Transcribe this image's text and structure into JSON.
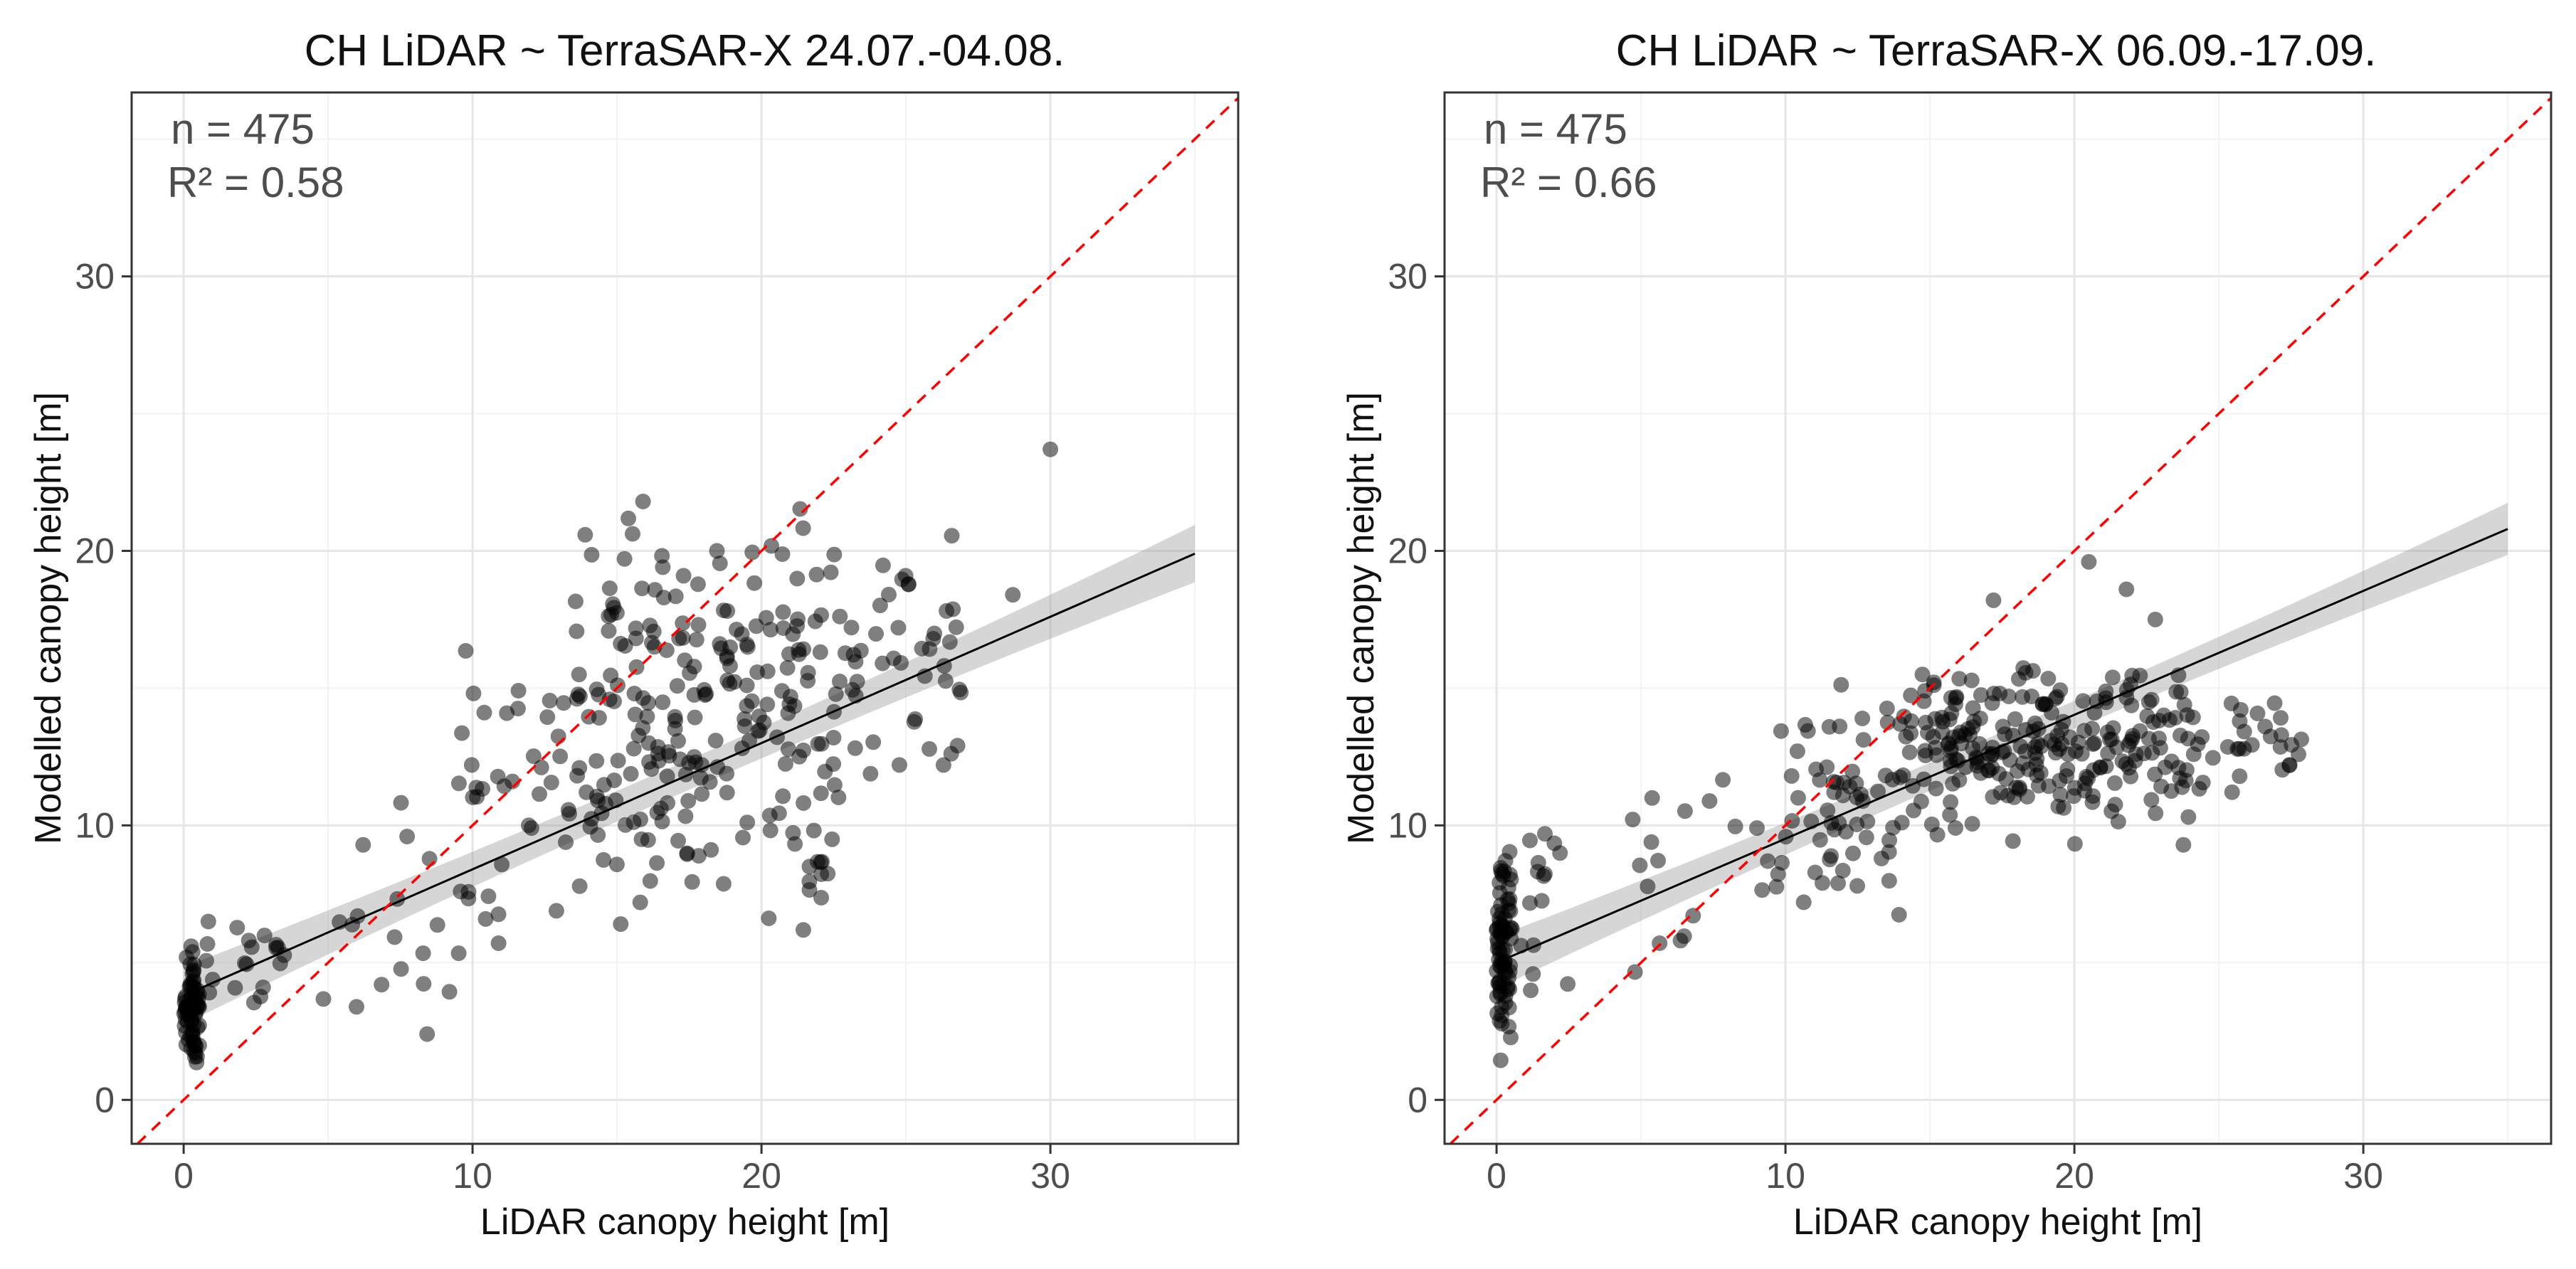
{
  "chart_data": [
    {
      "type": "scatter",
      "title": "CH LiDAR ~ TerraSAR-X 24.07.-04.08.",
      "xlabel": "LiDAR canopy height [m]",
      "ylabel": "Modelled canopy height [m]",
      "xlim": [
        -1.8,
        36.5
      ],
      "ylim": [
        -1.6,
        36.7
      ],
      "xticks": [
        0,
        10,
        20,
        30
      ],
      "yticks": [
        0,
        10,
        20,
        30
      ],
      "tick_labels_x": [
        "0",
        "10",
        "20",
        "30"
      ],
      "tick_labels_y": [
        "0",
        "10",
        "20",
        "30"
      ],
      "annotation_n": "n = 475",
      "annotation_r2": "R² = 0.58",
      "n": 475,
      "r2": 0.58,
      "fit": {
        "x0": 0,
        "y0": 3.8,
        "x1": 35,
        "y1": 19.9,
        "se": 0.55
      },
      "identity_line": true,
      "series": [
        {
          "name": "observations",
          "seed": 11,
          "groups": [
            {
              "count": 75,
              "x": [
                0,
                0.55
              ],
              "y": [
                0.9,
                5.8
              ]
            },
            {
              "count": 20,
              "x": [
                0.6,
                3.5
              ],
              "y": [
                3.3,
                7.6
              ]
            },
            {
              "count": 18,
              "x": [
                4.5,
                9.8
              ],
              "y": [
                1.2,
                12.2
              ]
            },
            {
              "count": 40,
              "x": [
                9.5,
                13.5
              ],
              "y": [
                4.8,
                19.4
              ]
            },
            {
              "count": 230,
              "x": [
                13.5,
                22.5
              ],
              "y": [
                6,
                22
              ]
            },
            {
              "count": 50,
              "x": [
                22.5,
                27
              ],
              "y": [
                10,
                21.2
              ]
            }
          ],
          "points": [
            [
              30,
              23.7
            ],
            [
              28.7,
              18.4
            ],
            [
              15.9,
              21.8
            ],
            [
              26.3,
              12.2
            ]
          ]
        }
      ]
    },
    {
      "type": "scatter",
      "title": "CH LiDAR ~ TerraSAR-X 06.09.-17.09.",
      "xlabel": "LiDAR canopy height [m]",
      "ylabel": "Modelled canopy height [m]",
      "xlim": [
        -1.8,
        36.5
      ],
      "ylim": [
        -1.6,
        36.7
      ],
      "xticks": [
        0,
        10,
        20,
        30
      ],
      "yticks": [
        0,
        10,
        20,
        30
      ],
      "tick_labels_x": [
        "0",
        "10",
        "20",
        "30"
      ],
      "tick_labels_y": [
        "0",
        "10",
        "20",
        "30"
      ],
      "annotation_n": "n = 475",
      "annotation_r2": "R² = 0.66",
      "n": 475,
      "r2": 0.66,
      "fit": {
        "x0": 0,
        "y0": 5.0,
        "x1": 35,
        "y1": 20.8,
        "se": 0.5
      },
      "identity_line": true,
      "series": [
        {
          "name": "observations",
          "seed": 29,
          "groups": [
            {
              "count": 80,
              "x": [
                0,
                0.5
              ],
              "y": [
                0.7,
                10.1
              ]
            },
            {
              "count": 16,
              "x": [
                0.5,
                3
              ],
              "y": [
                2.8,
                11.4
              ]
            },
            {
              "count": 20,
              "x": [
                4.5,
                9.8
              ],
              "y": [
                2.3,
                15.3
              ]
            },
            {
              "count": 60,
              "x": [
                9.8,
                14
              ],
              "y": [
                6.4,
                15.4
              ]
            },
            {
              "count": 240,
              "x": [
                14,
                24
              ],
              "y": [
                9.2,
                16.3
              ]
            },
            {
              "count": 30,
              "x": [
                24,
                28
              ],
              "y": [
                10.8,
                15.3
              ]
            }
          ],
          "points": [
            [
              20.5,
              19.6
            ],
            [
              21.8,
              18.6
            ],
            [
              17.2,
              18.2
            ],
            [
              22.8,
              17.5
            ],
            [
              26.6,
              13.6
            ]
          ]
        }
      ]
    }
  ]
}
